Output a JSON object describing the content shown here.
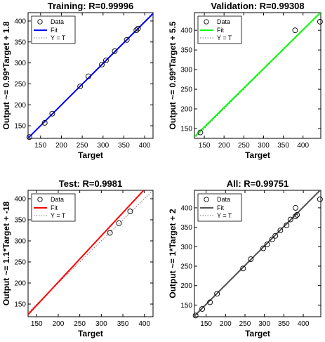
{
  "chart_data": [
    {
      "type": "scatter",
      "title": "Training: R=0.99996",
      "xlabel": "Target",
      "ylabel": "Output ~= 0.99*Target + 1.8",
      "xlim": [
        120,
        420
      ],
      "ylim": [
        120,
        420
      ],
      "xticks": [
        150,
        200,
        250,
        300,
        350,
        400
      ],
      "yticks": [
        150,
        200,
        250,
        300,
        350,
        400
      ],
      "fit_color": "#0000ff",
      "fit": {
        "slope": 0.99,
        "intercept": 1.8
      },
      "legend": {
        "position": "top-left",
        "entries": [
          "Data",
          "Fit",
          "Y = T"
        ]
      },
      "points": [
        {
          "x": 123,
          "y": 123
        },
        {
          "x": 160,
          "y": 157
        },
        {
          "x": 178,
          "y": 179
        },
        {
          "x": 245,
          "y": 244
        },
        {
          "x": 265,
          "y": 268
        },
        {
          "x": 297,
          "y": 296
        },
        {
          "x": 307,
          "y": 306
        },
        {
          "x": 328,
          "y": 328
        },
        {
          "x": 357,
          "y": 355
        },
        {
          "x": 380,
          "y": 378
        },
        {
          "x": 384,
          "y": 382
        }
      ]
    },
    {
      "type": "scatter",
      "title": "Validation: R=0.99308",
      "xlabel": "Target",
      "ylabel": "Output ~= 0.99*Target + 5.5",
      "xlim": [
        125,
        445
      ],
      "ylim": [
        125,
        445
      ],
      "xticks": [
        150,
        200,
        250,
        300,
        350,
        400
      ],
      "yticks": [
        150,
        200,
        250,
        300,
        350,
        400
      ],
      "fit_color": "#00ff00",
      "fit": {
        "slope": 0.99,
        "intercept": 5.5
      },
      "legend": {
        "position": "top-left",
        "entries": [
          "Data",
          "Fit",
          "Y = T"
        ]
      },
      "points": [
        {
          "x": 140,
          "y": 140
        },
        {
          "x": 380,
          "y": 400
        },
        {
          "x": 443,
          "y": 422
        }
      ]
    },
    {
      "type": "scatter",
      "title": "Test: R=0.9981",
      "xlabel": "Target",
      "ylabel": "Output ~= 1.1*Target + -18",
      "xlim": [
        130,
        420
      ],
      "ylim": [
        120,
        420
      ],
      "xticks": [
        150,
        200,
        250,
        300,
        350,
        400
      ],
      "yticks": [
        150,
        200,
        250,
        300,
        350,
        400
      ],
      "fit_color": "#ff0000",
      "fit": {
        "slope": 1.1,
        "intercept": -18
      },
      "legend": {
        "position": "top-left",
        "entries": [
          "Data",
          "Fit",
          "Y = T"
        ]
      },
      "points": [
        {
          "x": 320,
          "y": 319
        },
        {
          "x": 341,
          "y": 342
        },
        {
          "x": 367,
          "y": 370
        }
      ]
    },
    {
      "type": "scatter",
      "title": "All: R=0.99751",
      "xlabel": "Target",
      "ylabel": "Output ~= 1*Target + 2",
      "xlim": [
        120,
        445
      ],
      "ylim": [
        120,
        445
      ],
      "xticks": [
        150,
        200,
        250,
        300,
        350,
        400
      ],
      "yticks": [
        150,
        200,
        250,
        300,
        350,
        400
      ],
      "fit_color": "#555555",
      "fit": {
        "slope": 1.0,
        "intercept": 2
      },
      "legend": {
        "position": "top-left",
        "entries": [
          "Data",
          "Fit",
          "Y = T"
        ]
      },
      "points": [
        {
          "x": 123,
          "y": 123
        },
        {
          "x": 140,
          "y": 140
        },
        {
          "x": 160,
          "y": 157
        },
        {
          "x": 178,
          "y": 179
        },
        {
          "x": 245,
          "y": 244
        },
        {
          "x": 265,
          "y": 268
        },
        {
          "x": 297,
          "y": 296
        },
        {
          "x": 307,
          "y": 306
        },
        {
          "x": 320,
          "y": 319
        },
        {
          "x": 328,
          "y": 328
        },
        {
          "x": 341,
          "y": 342
        },
        {
          "x": 357,
          "y": 355
        },
        {
          "x": 367,
          "y": 370
        },
        {
          "x": 380,
          "y": 378
        },
        {
          "x": 380,
          "y": 400
        },
        {
          "x": 384,
          "y": 382
        },
        {
          "x": 443,
          "y": 422
        }
      ]
    }
  ]
}
